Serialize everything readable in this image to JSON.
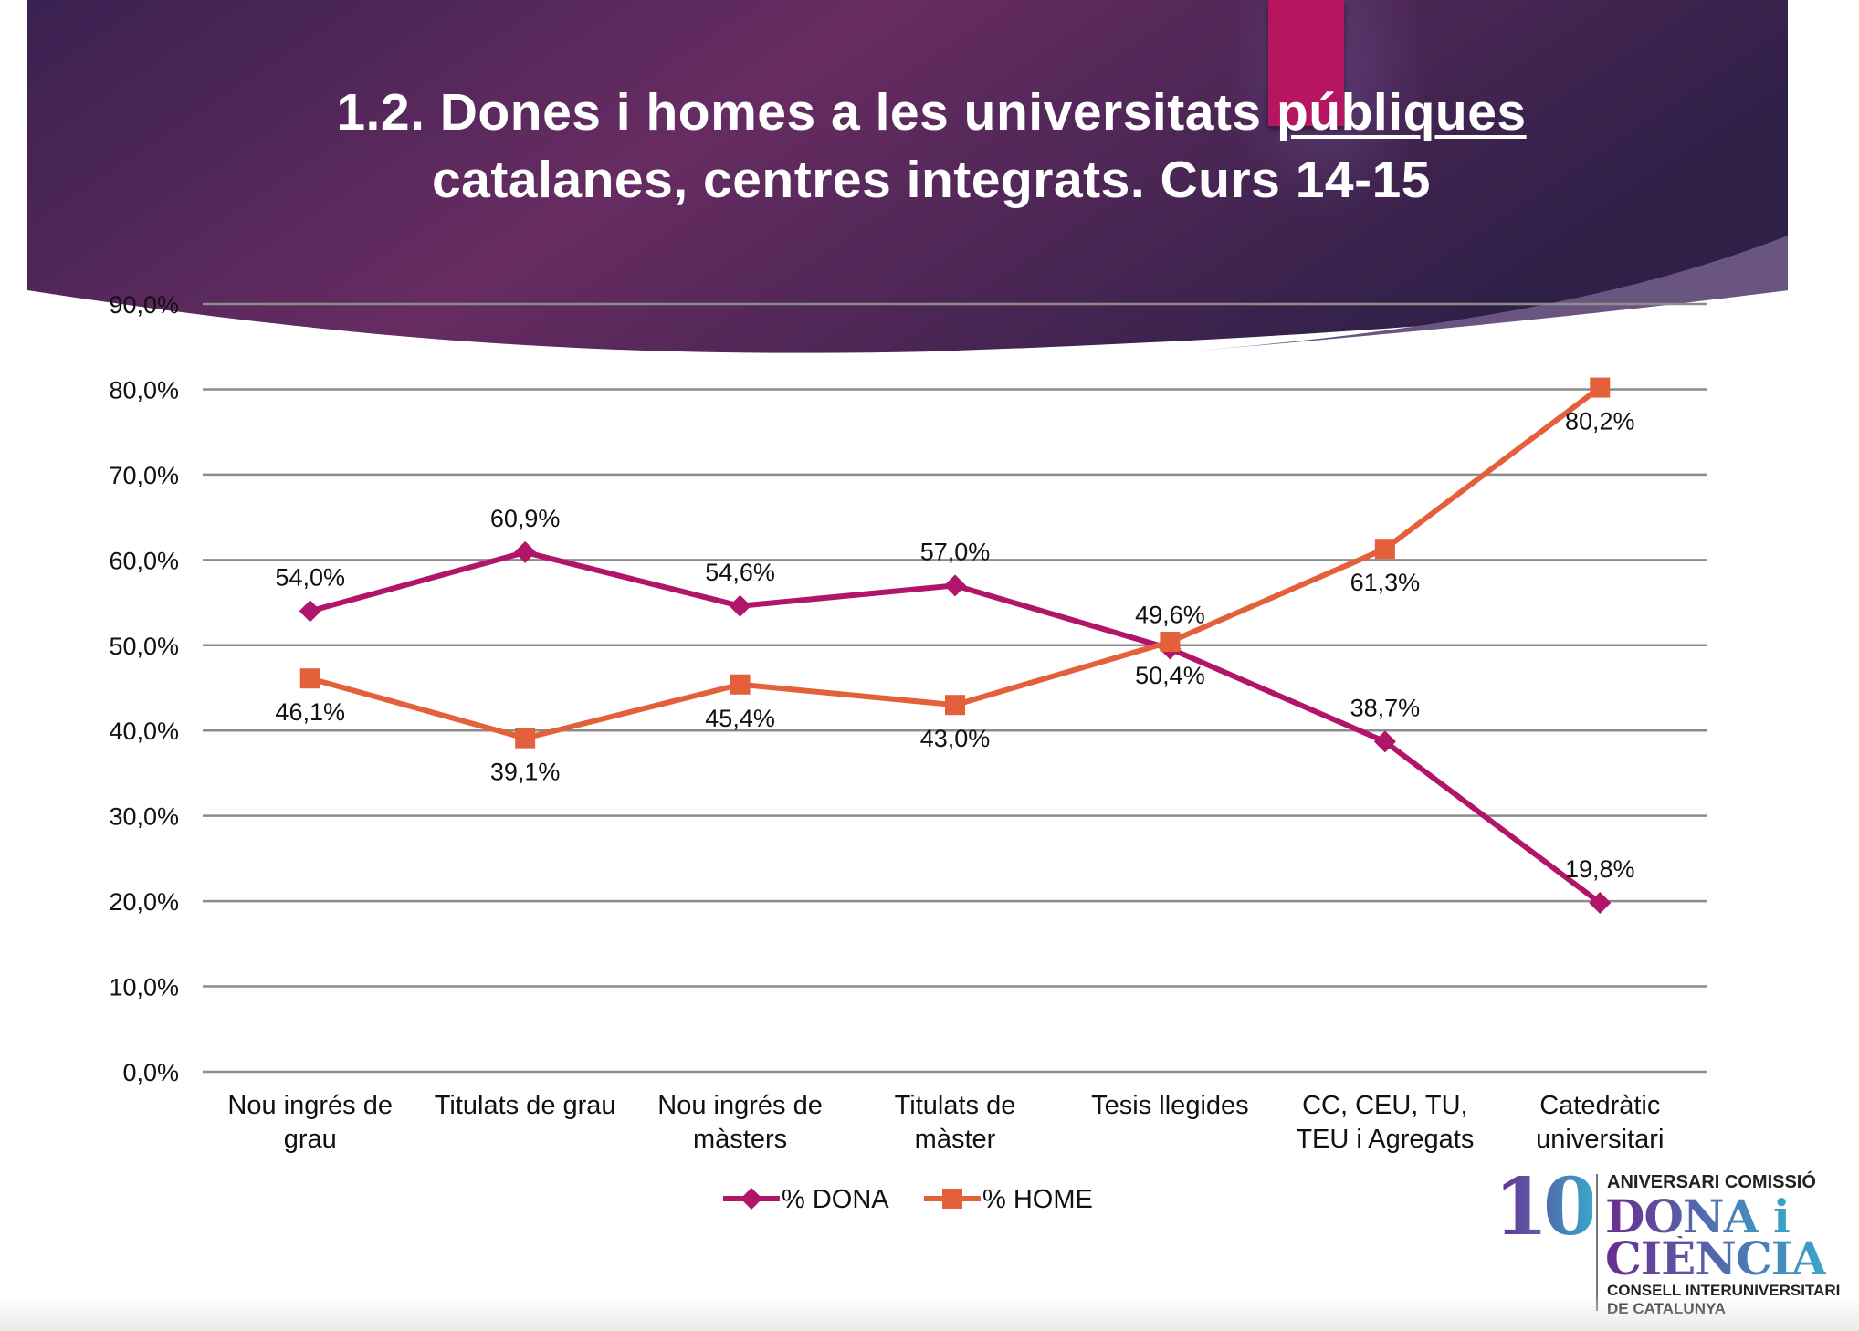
{
  "slide": {
    "title_line1_prefix": "1.2. Dones i homes a les universitats ",
    "title_line1_underlined": "públiques",
    "title_line2": "catalanes, centres integrats. Curs 14-15"
  },
  "colors": {
    "header_dark": "#3a2151",
    "header_mid": "#6a2d62",
    "accent_square": "#b5155f",
    "series_dona": "#b0156a",
    "series_home": "#e4603a",
    "gridline": "#8c8c8c"
  },
  "chart_data": {
    "type": "line",
    "title": "1.2. Dones i homes a les universitats públiques catalanes, centres integrats. Curs 14-15",
    "xlabel": "",
    "ylabel": "",
    "categories": [
      [
        "Nou ingrés de",
        "grau"
      ],
      [
        "Titulats de grau"
      ],
      [
        "Nou ingrés de",
        "màsters"
      ],
      [
        "Titulats de",
        "màster"
      ],
      [
        "Tesis llegides"
      ],
      [
        "CC, CEU, TU,",
        "TEU i Agregats"
      ],
      [
        "Catedràtic",
        "universitari"
      ]
    ],
    "series": [
      {
        "name": "% DONA",
        "marker": "diamond",
        "color": "#b0156a",
        "values": [
          54.0,
          60.9,
          54.6,
          57.0,
          49.6,
          38.7,
          19.8
        ],
        "labels": [
          "54,0%",
          "60,9%",
          "54,6%",
          "57,0%",
          "49,6%",
          "38,7%",
          "19,8%"
        ],
        "label_position": [
          "above",
          "above",
          "above",
          "above",
          "above",
          "above",
          "above"
        ]
      },
      {
        "name": "% HOME",
        "marker": "square",
        "color": "#e4603a",
        "values": [
          46.1,
          39.1,
          45.4,
          43.0,
          50.4,
          61.3,
          80.2
        ],
        "labels": [
          "46,1%",
          "39,1%",
          "45,4%",
          "43,0%",
          "50,4%",
          "61,3%",
          "80,2%"
        ],
        "label_position": [
          "below",
          "below",
          "below",
          "below",
          "below",
          "below",
          "below"
        ]
      }
    ],
    "ylim": [
      0,
      90
    ],
    "yticks": [
      0,
      10,
      20,
      30,
      40,
      50,
      60,
      70,
      80,
      90
    ],
    "ytick_labels": [
      "0,0%",
      "10,0%",
      "20,0%",
      "30,0%",
      "40,0%",
      "50,0%",
      "60,0%",
      "70,0%",
      "80,0%",
      "90,0%"
    ],
    "grid": true,
    "legend": "bottom-center"
  },
  "logo": {
    "number": "10",
    "top_line": "ANIVERSARI COMISSIÓ",
    "big_line1": "DONA i",
    "big_line2": "CIÈNCIA",
    "bottom_line1": "CONSELL INTERUNIVERSITARI",
    "bottom_line2": "DE CATALUNYA"
  }
}
